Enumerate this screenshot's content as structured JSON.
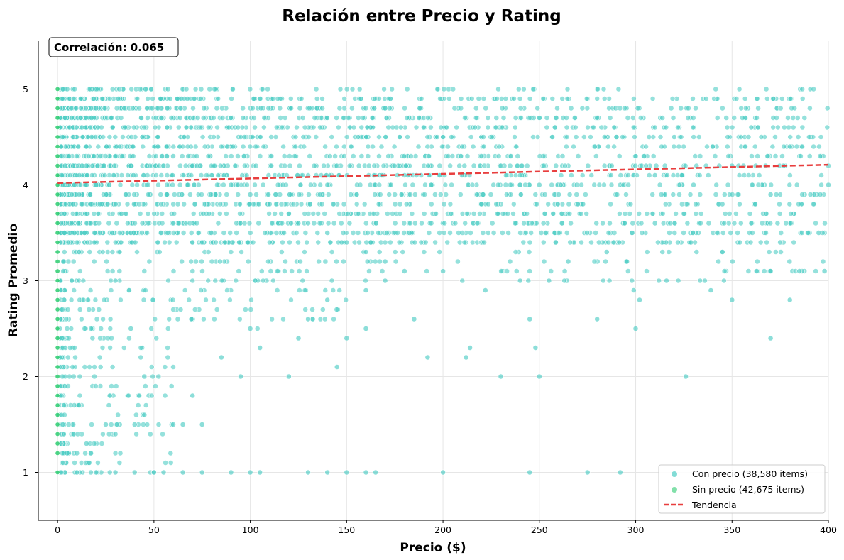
{
  "chart_data": {
    "type": "scatter",
    "title": "Relación entre Precio y Rating",
    "xlabel": "Precio ($)",
    "ylabel": "Rating Promedio",
    "xlim": [
      -10,
      400
    ],
    "ylim": [
      0.5,
      5.5
    ],
    "x_ticks": [
      0,
      50,
      100,
      150,
      200,
      250,
      300,
      350,
      400
    ],
    "y_ticks": [
      1,
      2,
      3,
      4,
      5
    ],
    "grid": true,
    "legend_position": "lower-right",
    "annotation": "Correlación: 0.065",
    "series": [
      {
        "name": "Con precio (38,580 items)",
        "color": "#4ecdc4",
        "marker": "circle",
        "points": [
          [
            5,
            5.0
          ],
          [
            12,
            4.9
          ],
          [
            20,
            4.8
          ],
          [
            28,
            4.7
          ],
          [
            35,
            4.6
          ],
          [
            44,
            4.5
          ],
          [
            52,
            4.4
          ],
          [
            60,
            4.3
          ],
          [
            70,
            4.2
          ],
          [
            80,
            4.1
          ],
          [
            90,
            4.0
          ],
          [
            100,
            3.9
          ],
          [
            110,
            3.8
          ],
          [
            120,
            3.7
          ],
          [
            130,
            3.6
          ],
          [
            140,
            3.5
          ],
          [
            150,
            3.4
          ],
          [
            160,
            3.3
          ],
          [
            170,
            3.2
          ],
          [
            180,
            3.1
          ],
          [
            190,
            4.6
          ],
          [
            200,
            4.5
          ],
          [
            210,
            4.4
          ],
          [
            220,
            4.3
          ],
          [
            230,
            4.2
          ],
          [
            240,
            4.1
          ],
          [
            250,
            4.0
          ],
          [
            260,
            3.9
          ],
          [
            270,
            3.8
          ],
          [
            280,
            4.7
          ],
          [
            290,
            4.5
          ],
          [
            300,
            4.3
          ],
          [
            310,
            4.1
          ],
          [
            320,
            4.5
          ],
          [
            330,
            4.0
          ],
          [
            340,
            4.4
          ],
          [
            350,
            4.2
          ],
          [
            360,
            4.6
          ],
          [
            370,
            3.9
          ],
          [
            380,
            4.4
          ],
          [
            390,
            4.5
          ],
          [
            400,
            4.0
          ],
          [
            8,
            4.5
          ],
          [
            15,
            4.0
          ],
          [
            22,
            3.5
          ],
          [
            30,
            3.0
          ],
          [
            38,
            2.5
          ],
          [
            45,
            2.0
          ],
          [
            10,
            1.0
          ],
          [
            20,
            1.0
          ],
          [
            30,
            1.0
          ],
          [
            40,
            1.0
          ],
          [
            50,
            1.0
          ],
          [
            55,
            1.0
          ],
          [
            65,
            1.0
          ],
          [
            75,
            1.0
          ],
          [
            90,
            1.0
          ],
          [
            100,
            1.0
          ],
          [
            105,
            1.0
          ],
          [
            130,
            1.0
          ],
          [
            140,
            1.0
          ],
          [
            150,
            1.0
          ],
          [
            160,
            1.0
          ],
          [
            165,
            1.0
          ],
          [
            200,
            1.0
          ],
          [
            245,
            1.0
          ],
          [
            275,
            1.0
          ],
          [
            292,
            1.0
          ],
          [
            5,
            1.2
          ],
          [
            10,
            1.2
          ],
          [
            15,
            1.3
          ],
          [
            25,
            1.5
          ],
          [
            30,
            1.4
          ],
          [
            40,
            1.5
          ],
          [
            45,
            1.6
          ],
          [
            60,
            1.5
          ],
          [
            65,
            1.5
          ],
          [
            75,
            1.5
          ],
          [
            70,
            1.8
          ],
          [
            85,
            2.2
          ],
          [
            95,
            2.0
          ],
          [
            100,
            2.5
          ],
          [
            105,
            2.3
          ],
          [
            120,
            2.0
          ],
          [
            125,
            2.4
          ],
          [
            145,
            2.1
          ],
          [
            150,
            2.4
          ],
          [
            160,
            2.5
          ],
          [
            185,
            2.6
          ],
          [
            192,
            2.2
          ],
          [
            212,
            2.2
          ],
          [
            214,
            2.3
          ],
          [
            230,
            2.0
          ],
          [
            245,
            2.6
          ],
          [
            248,
            2.3
          ],
          [
            250,
            2.0
          ],
          [
            280,
            2.6
          ],
          [
            300,
            2.5
          ],
          [
            326,
            2.0
          ],
          [
            370,
            2.4
          ],
          [
            380,
            2.8
          ],
          [
            350,
            2.8
          ],
          [
            302,
            2.8
          ],
          [
            339,
            2.9
          ],
          [
            299,
            2.9
          ],
          [
            316,
            3.0
          ],
          [
            130,
            2.6
          ],
          [
            140,
            2.8
          ],
          [
            160,
            2.9
          ],
          [
            170,
            3.0
          ],
          [
            200,
            3.1
          ],
          [
            222,
            2.9
          ],
          [
            240,
            3.0
          ],
          [
            255,
            3.0
          ],
          [
            265,
            3.2
          ],
          [
            285,
            3.3
          ],
          [
            310,
            3.6
          ],
          [
            325,
            3.7
          ],
          [
            345,
            3.8
          ],
          [
            360,
            3.6
          ],
          [
            375,
            3.4
          ],
          [
            395,
            3.5
          ],
          [
            385,
            3.1
          ],
          [
            398,
            3.1
          ],
          [
            370,
            3.1
          ]
        ]
      },
      {
        "name": "Sin precio (42,675 items)",
        "color": "#2ecc71",
        "marker": "circle",
        "points": [
          [
            0,
            1.0
          ],
          [
            0,
            1.2
          ],
          [
            0,
            1.3
          ],
          [
            0,
            1.4
          ],
          [
            0,
            1.5
          ],
          [
            0,
            1.6
          ],
          [
            0,
            1.7
          ],
          [
            0,
            1.8
          ],
          [
            0,
            1.9
          ],
          [
            0,
            2.0
          ],
          [
            0,
            2.1
          ],
          [
            0,
            2.2
          ],
          [
            0,
            2.3
          ],
          [
            0,
            2.4
          ],
          [
            0,
            2.5
          ],
          [
            0,
            2.6
          ],
          [
            0,
            2.7
          ],
          [
            0,
            2.8
          ],
          [
            0,
            2.9
          ],
          [
            0,
            3.0
          ],
          [
            0,
            3.1
          ],
          [
            0,
            3.2
          ],
          [
            0,
            3.3
          ],
          [
            0,
            3.4
          ],
          [
            0,
            3.5
          ],
          [
            0,
            3.6
          ],
          [
            0,
            3.7
          ],
          [
            0,
            3.8
          ],
          [
            0,
            3.9
          ],
          [
            0,
            4.0
          ],
          [
            0,
            4.1
          ],
          [
            0,
            4.2
          ],
          [
            0,
            4.3
          ],
          [
            0,
            4.4
          ],
          [
            0,
            4.5
          ],
          [
            0,
            4.6
          ],
          [
            0,
            4.7
          ],
          [
            0,
            4.8
          ],
          [
            0,
            4.9
          ],
          [
            0,
            5.0
          ]
        ]
      }
    ],
    "trend": {
      "name": "Tendencia",
      "color": "#e83e3e",
      "x": [
        0,
        400
      ],
      "y": [
        4.02,
        4.21
      ]
    }
  }
}
